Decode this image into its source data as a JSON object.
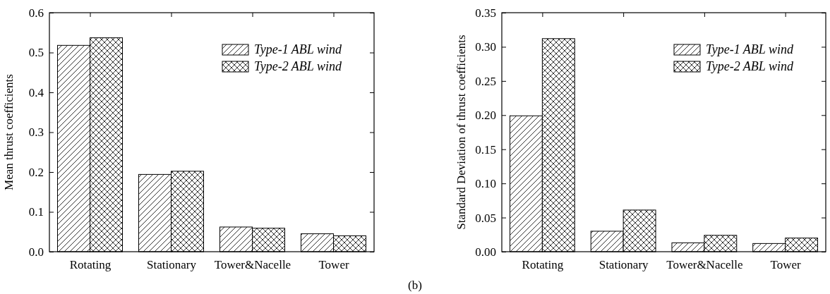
{
  "chart_data": [
    {
      "type": "bar",
      "ylabel": "Mean thrust coefficients",
      "categories": [
        "Rotating",
        "Stationary",
        "Tower&Nacelle",
        "Tower"
      ],
      "series": [
        {
          "name": "Type-1 ABL wind",
          "color": "#000000",
          "values": [
            0.518,
            0.194,
            0.062,
            0.045
          ]
        },
        {
          "name": "Type-2 ABL wind",
          "color": "#000000",
          "values": [
            0.537,
            0.202,
            0.059,
            0.04
          ]
        }
      ],
      "ylim": [
        0,
        0.6
      ],
      "yticks": [
        {
          "value": 0,
          "label": "0.0"
        },
        {
          "value": 0.1,
          "label": "0.1"
        },
        {
          "value": 0.2,
          "label": "0.2"
        },
        {
          "value": 0.3,
          "label": "0.3"
        },
        {
          "value": 0.4,
          "label": "0.4"
        },
        {
          "value": 0.5,
          "label": "0.5"
        },
        {
          "value": 0.6,
          "label": "0.6"
        }
      ],
      "legend": "top right",
      "grid": false
    },
    {
      "type": "bar",
      "ylabel": "Standard Deviation of thrust coefficients",
      "categories": [
        "Rotating",
        "Stationary",
        "Tower&Nacelle",
        "Tower"
      ],
      "series": [
        {
          "name": "Type-1 ABL wind",
          "color": "#000000",
          "values": [
            0.199,
            0.03,
            0.013,
            0.012
          ]
        },
        {
          "name": "Type-2 ABL wind",
          "color": "#000000",
          "values": [
            0.312,
            0.061,
            0.024,
            0.02
          ]
        }
      ],
      "ylim": [
        0,
        0.35
      ],
      "yticks": [
        {
          "value": 0,
          "label": "0.00"
        },
        {
          "value": 0.05,
          "label": "0.05"
        },
        {
          "value": 0.1,
          "label": "0.10"
        },
        {
          "value": 0.15,
          "label": "0.15"
        },
        {
          "value": 0.2,
          "label": "0.20"
        },
        {
          "value": 0.25,
          "label": "0.25"
        },
        {
          "value": 0.3,
          "label": "0.30"
        },
        {
          "value": 0.35,
          "label": "0.35"
        }
      ],
      "legend": "top right",
      "grid": false,
      "annotations": [
        "(b)"
      ]
    }
  ]
}
